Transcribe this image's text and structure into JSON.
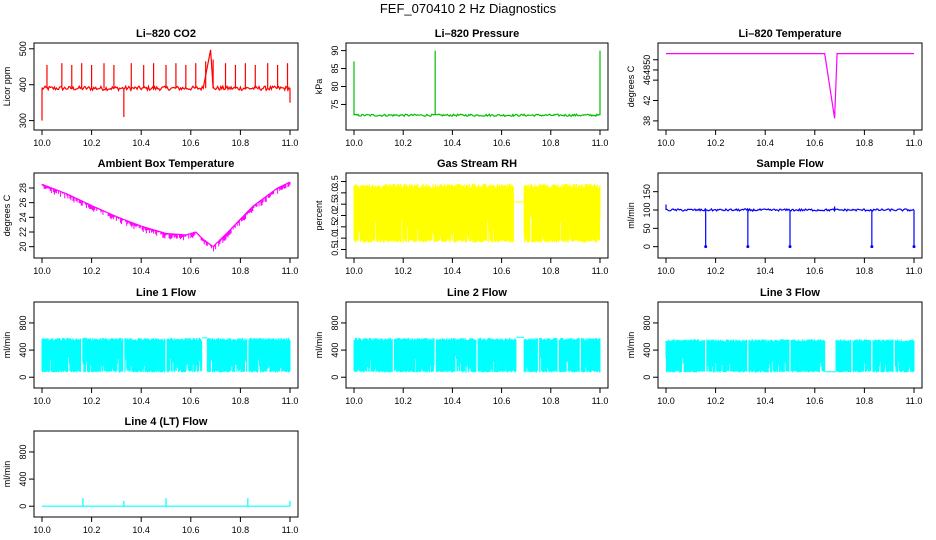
{
  "suptitle": "FEF_070410  2 Hz Diagnostics",
  "chart_data": [
    {
      "id": "co2",
      "type": "line",
      "title": "Li–820 CO2",
      "ylabel": "Licor ppm",
      "color": "#ff0000",
      "xlim": [
        0.0,
        1.0
      ],
      "ylim": [
        285,
        505
      ],
      "xticks": [
        0.0,
        0.2,
        0.4,
        0.6,
        0.8,
        1.0
      ],
      "xtick_labels": [
        "10.0",
        "10.2",
        "10.4",
        "10.6",
        "10.8",
        "11.0"
      ],
      "yticks": [
        300,
        400,
        500
      ],
      "ytick_labels": [
        "300",
        "400",
        "500"
      ],
      "base": 390,
      "noise": 6,
      "spikes": [
        [
          0.0,
          300
        ],
        [
          0.02,
          455
        ],
        [
          0.08,
          460
        ],
        [
          0.12,
          455
        ],
        [
          0.16,
          460
        ],
        [
          0.2,
          455
        ],
        [
          0.25,
          460
        ],
        [
          0.29,
          455
        ],
        [
          0.33,
          310
        ],
        [
          0.36,
          460
        ],
        [
          0.41,
          455
        ],
        [
          0.45,
          460
        ],
        [
          0.5,
          455
        ],
        [
          0.54,
          460
        ],
        [
          0.58,
          455
        ],
        [
          0.62,
          460
        ],
        [
          0.66,
          465
        ],
        [
          0.69,
          470
        ],
        [
          0.74,
          460
        ],
        [
          0.78,
          455
        ],
        [
          0.82,
          460
        ],
        [
          0.86,
          455
        ],
        [
          0.91,
          460
        ],
        [
          0.95,
          455
        ],
        [
          0.99,
          460
        ],
        [
          1.0,
          350
        ]
      ],
      "ramp": [
        [
          0.65,
          390
        ],
        [
          0.68,
          497
        ],
        [
          0.69,
          390
        ]
      ]
    },
    {
      "id": "press",
      "type": "line",
      "title": "Li–820 Pressure",
      "ylabel": "kPa",
      "color": "#00c000",
      "xlim": [
        0.0,
        1.0
      ],
      "ylim": [
        69,
        91
      ],
      "xticks": [
        0.0,
        0.2,
        0.4,
        0.6,
        0.8,
        1.0
      ],
      "xtick_labels": [
        "10.0",
        "10.2",
        "10.4",
        "10.6",
        "10.8",
        "11.0"
      ],
      "yticks": [
        75,
        80,
        85,
        90
      ],
      "ytick_labels": [
        "75",
        "80",
        "85",
        "90"
      ],
      "base": 72,
      "noise": 0.3,
      "spikes": [
        [
          0.0,
          87
        ],
        [
          0.33,
          90
        ],
        [
          1.0,
          90
        ]
      ]
    },
    {
      "id": "temp",
      "type": "line",
      "title": "Li–820 Temperature",
      "ylabel": "degrees C",
      "color": "#ff00ff",
      "xlim": [
        0.0,
        1.0
      ],
      "ylim": [
        37,
        52.5
      ],
      "xticks": [
        0.0,
        0.2,
        0.4,
        0.6,
        0.8,
        1.0
      ],
      "xtick_labels": [
        "10.0",
        "10.2",
        "10.4",
        "10.6",
        "10.8",
        "11.0"
      ],
      "yticks": [
        38,
        42,
        46,
        48,
        50
      ],
      "ytick_labels": [
        "38",
        "42",
        "46",
        "48",
        "50"
      ],
      "base": 51.2,
      "noise": 0,
      "dip": [
        [
          0.64,
          51.2
        ],
        [
          0.68,
          38.5
        ],
        [
          0.69,
          51.2
        ]
      ]
    },
    {
      "id": "ambient",
      "type": "line",
      "title": "Ambient Box Temperature",
      "ylabel": "degrees C",
      "color": "#ff00ff",
      "xlim": [
        0.0,
        1.0
      ],
      "ylim": [
        19,
        29.5
      ],
      "xticks": [
        0.0,
        0.2,
        0.4,
        0.6,
        0.8,
        1.0
      ],
      "xtick_labels": [
        "10.0",
        "10.2",
        "10.4",
        "10.6",
        "10.8",
        "11.0"
      ],
      "yticks": [
        20,
        22,
        24,
        26,
        28
      ],
      "ytick_labels": [
        "20",
        "22",
        "24",
        "26",
        "28"
      ],
      "profile": [
        [
          0.0,
          28.5
        ],
        [
          0.1,
          27.2
        ],
        [
          0.2,
          25.6
        ],
        [
          0.3,
          24.1
        ],
        [
          0.4,
          22.8
        ],
        [
          0.5,
          21.8
        ],
        [
          0.58,
          21.6
        ],
        [
          0.62,
          22.0
        ],
        [
          0.65,
          21.0
        ],
        [
          0.69,
          20.0
        ],
        [
          0.75,
          22.0
        ],
        [
          0.85,
          25.5
        ],
        [
          0.95,
          28.0
        ],
        [
          1.0,
          28.8
        ]
      ],
      "noise": 0.8
    },
    {
      "id": "rh",
      "type": "band",
      "title": "Gas Stream RH",
      "ylabel": "percent",
      "color": "#ffff00",
      "xlim": [
        0.0,
        1.0
      ],
      "ylim": [
        0.3,
        3.7
      ],
      "xticks": [
        0.0,
        0.2,
        0.4,
        0.6,
        0.8,
        1.0
      ],
      "xtick_labels": [
        "10.0",
        "10.2",
        "10.4",
        "10.6",
        "10.8",
        "11.0"
      ],
      "yticks": [
        0.5,
        1.0,
        1.5,
        2.0,
        2.5,
        3.0,
        3.5
      ],
      "ytick_labels": [
        "0.5",
        "1.0",
        "1.5",
        "2.0",
        "2.5",
        "3.0",
        "3.5"
      ],
      "low": 0.8,
      "high": 3.4,
      "gaps": [
        [
          0.65,
          0.69
        ]
      ],
      "gap_value": 2.6
    },
    {
      "id": "sample",
      "type": "line",
      "title": "Sample Flow",
      "ylabel": "ml/min",
      "color": "#0000ff",
      "xlim": [
        0.0,
        1.0
      ],
      "ylim": [
        -20,
        190
      ],
      "xticks": [
        0.0,
        0.2,
        0.4,
        0.6,
        0.8,
        1.0
      ],
      "xtick_labels": [
        "10.0",
        "10.2",
        "10.4",
        "10.6",
        "10.8",
        "11.0"
      ],
      "yticks": [
        0,
        50,
        100,
        150
      ],
      "ytick_labels": [
        "0",
        "50",
        "100",
        "150"
      ],
      "base": 100,
      "noise": 3,
      "spikes": [
        [
          0.0,
          115
        ],
        [
          0.16,
          0
        ],
        [
          0.33,
          0
        ],
        [
          0.5,
          0
        ],
        [
          0.68,
          110
        ],
        [
          0.83,
          0
        ],
        [
          1.0,
          0
        ]
      ]
    },
    {
      "id": "line1",
      "type": "band",
      "title": "Line 1 Flow",
      "ylabel": "ml/min",
      "color": "#00ffff",
      "xlim": [
        0.0,
        1.0
      ],
      "ylim": [
        -100,
        1050
      ],
      "xticks": [
        0.0,
        0.2,
        0.4,
        0.6,
        0.8,
        1.0
      ],
      "xtick_labels": [
        "10.0",
        "10.2",
        "10.4",
        "10.6",
        "10.8",
        "11.0"
      ],
      "yticks": [
        0,
        400,
        800
      ],
      "ytick_labels": [
        "0",
        "400",
        "800"
      ],
      "low": 70,
      "high": 580,
      "gaps": [
        [
          0.645,
          0.665
        ]
      ],
      "gap_value": 580,
      "dividers": [
        0.16,
        0.33,
        0.5,
        0.83
      ]
    },
    {
      "id": "line2",
      "type": "band",
      "title": "Line 2 Flow",
      "ylabel": "ml/min",
      "color": "#00ffff",
      "xlim": [
        0.0,
        1.0
      ],
      "ylim": [
        -100,
        1050
      ],
      "xticks": [
        0.0,
        0.2,
        0.4,
        0.6,
        0.8,
        1.0
      ],
      "xtick_labels": [
        "10.0",
        "10.2",
        "10.4",
        "10.6",
        "10.8",
        "11.0"
      ],
      "yticks": [
        0,
        400,
        800
      ],
      "ytick_labels": [
        "0",
        "400",
        "800"
      ],
      "low": 70,
      "high": 580,
      "gaps": [
        [
          0.66,
          0.69
        ]
      ],
      "gap_value": 590,
      "dividers": [
        0.16,
        0.33,
        0.5,
        0.75,
        0.83,
        0.92
      ]
    },
    {
      "id": "line3",
      "type": "band",
      "title": "Line 3 Flow",
      "ylabel": "ml/min",
      "color": "#00ffff",
      "xlim": [
        0.0,
        1.0
      ],
      "ylim": [
        -100,
        1050
      ],
      "xticks": [
        0.0,
        0.2,
        0.4,
        0.6,
        0.8,
        1.0
      ],
      "xtick_labels": [
        "10.0",
        "10.2",
        "10.4",
        "10.6",
        "10.8",
        "11.0"
      ],
      "yticks": [
        0,
        400,
        800
      ],
      "ytick_labels": [
        "0",
        "400",
        "800"
      ],
      "low": 70,
      "high": 560,
      "gaps": [
        [
          0.64,
          0.685
        ]
      ],
      "gap_value": 80,
      "dividers": [
        0.16,
        0.33,
        0.5,
        0.75,
        0.83,
        0.92
      ]
    },
    {
      "id": "line4",
      "type": "line",
      "title": "Line 4 (LT) Flow",
      "ylabel": "ml/min",
      "color": "#00ffff",
      "xlim": [
        0.0,
        1.0
      ],
      "ylim": [
        -100,
        1050
      ],
      "xticks": [
        0.0,
        0.2,
        0.4,
        0.6,
        0.8,
        1.0
      ],
      "xtick_labels": [
        "10.0",
        "10.2",
        "10.4",
        "10.6",
        "10.8",
        "11.0"
      ],
      "yticks": [
        0,
        400,
        800
      ],
      "ytick_labels": [
        "0",
        "400",
        "800"
      ],
      "base": 0,
      "noise": 0,
      "spikes": [
        [
          0.165,
          120
        ],
        [
          0.33,
          80
        ],
        [
          0.5,
          120
        ],
        [
          0.83,
          120
        ],
        [
          1.0,
          80
        ]
      ]
    }
  ]
}
